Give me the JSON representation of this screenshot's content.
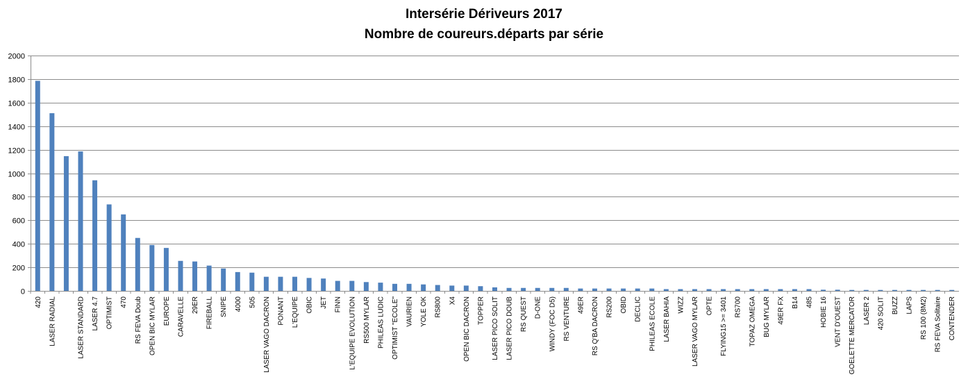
{
  "chart_data": {
    "type": "bar",
    "title": "Intersérie Dériveurs 2017",
    "subtitle": "Nombre de coureurs.départs par série",
    "ylim": [
      0,
      2000
    ],
    "ytick_step": 200,
    "grid": true,
    "legend": "none",
    "colors": {
      "bar": "#4F81BD",
      "grid": "#8C8C8C"
    },
    "categories": [
      "420",
      "LASER RADIAL",
      "",
      "LASER STANDARD",
      "LASER 4.7",
      "OPTIMIST",
      "470",
      "RS FEVA Doub",
      "OPEN BIC MYLAR",
      "EUROPE",
      "CARAVELLE",
      "29ER",
      "FIREBALL",
      "SNIPE",
      "4000",
      "505",
      "LASER VAGO DACRON",
      "PONANT",
      "L'EQUIPE",
      "OBIC",
      "JET",
      "FINN",
      "L'EQUIPE EVOLUTION",
      "RS500 MYLAR",
      "PHILEAS LUDIC",
      "OPTIMIST \"ECOLE\"",
      "VAURIEN",
      "YOLE OK",
      "RS800",
      "X4",
      "OPEN BIC DACRON",
      "TOPPER",
      "LASER PICO SOLIT",
      "LASER PICO DOUB",
      "RS QUEST",
      "D-ONE",
      "WINDY (FOC D5)",
      "RS VENTURE",
      "49ER",
      "RS Q'BA DACRON",
      "RS200",
      "OBID",
      "DECLIC",
      "PHILEAS ECOLE",
      "LASER BAHIA",
      "WIZZ",
      "LASER VAGO MYLAR",
      "OPTE",
      "FLYING15 >= 3401",
      "RS700",
      "TOPAZ OMEGA",
      "BUG MYLAR",
      "49ER FX",
      "B14",
      "485",
      "HOBIE 16",
      "VENT D'OUEST",
      "GOELETTE MERCATOR",
      "LASER 2",
      "420 SOLIT",
      "BUZZ",
      "LAPS",
      "RS 100 (8M2)",
      "RS FEVA Solitaire",
      "CONTENDER"
    ],
    "values": [
      1785,
      1510,
      1145,
      1185,
      940,
      735,
      650,
      450,
      390,
      365,
      255,
      250,
      215,
      190,
      160,
      155,
      120,
      120,
      120,
      110,
      105,
      85,
      85,
      75,
      70,
      60,
      60,
      55,
      50,
      45,
      45,
      40,
      30,
      25,
      25,
      25,
      25,
      25,
      20,
      20,
      20,
      20,
      20,
      20,
      15,
      15,
      15,
      15,
      15,
      15,
      15,
      15,
      15,
      15,
      15,
      10,
      10,
      8,
      8,
      8,
      8,
      8,
      8,
      8,
      8
    ]
  }
}
